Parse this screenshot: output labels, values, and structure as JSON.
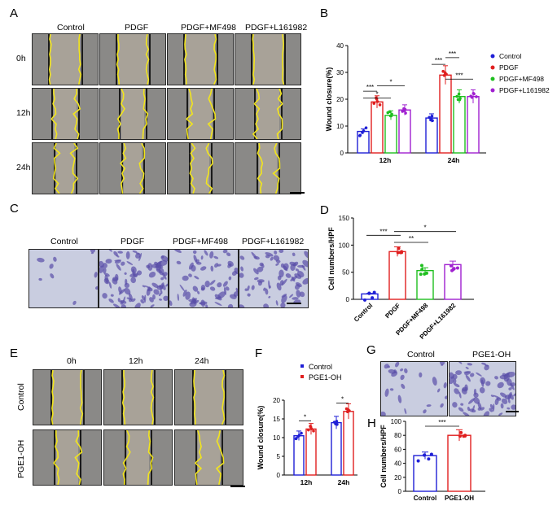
{
  "panels": {
    "A": {
      "label": "A",
      "columns": [
        "Control",
        "PDGF",
        "PDGF+MF498",
        "PDGF+L161982"
      ],
      "rows": [
        "0h",
        "12h",
        "24h"
      ]
    },
    "B": {
      "label": "B",
      "chart_data": {
        "type": "bar",
        "ylabel": "Wound closure(%)",
        "categories": [
          "12h",
          "24h"
        ],
        "ylim": [
          0,
          40
        ],
        "yticks": [
          "0",
          "10",
          "20",
          "30",
          "40"
        ],
        "series": [
          {
            "name": "Control",
            "color": "#1f1fd6",
            "values": [
              8,
              13
            ]
          },
          {
            "name": "PDGF",
            "color": "#e01f1f",
            "values": [
              19,
              29
            ]
          },
          {
            "name": "PDGF+MF498",
            "color": "#1fbf1f",
            "values": [
              14,
              21
            ]
          },
          {
            "name": "PDGF+L161982",
            "color": "#a020d0",
            "values": [
              16,
              21
            ]
          }
        ],
        "significance": [
          "***",
          "*",
          "*",
          "***",
          "***",
          "***"
        ]
      }
    },
    "C": {
      "label": "C",
      "columns": [
        "Control",
        "PDGF",
        "PDGF+MF498",
        "PDGF+L161982"
      ]
    },
    "D": {
      "label": "D",
      "chart_data": {
        "type": "bar",
        "ylabel": "Cell numbers/HPF",
        "categories": [
          "Control",
          "PDGF",
          "PDGF+MF498",
          "PDGF+L161982"
        ],
        "values": [
          10,
          88,
          53,
          64
        ],
        "colors": [
          "#1f1fd6",
          "#e01f1f",
          "#1fbf1f",
          "#a020d0"
        ],
        "ylim": [
          0,
          150
        ],
        "yticks": [
          "0",
          "50",
          "100",
          "150"
        ],
        "significance": [
          "***",
          "**",
          "*"
        ]
      }
    },
    "E": {
      "label": "E",
      "columns": [
        "0h",
        "12h",
        "24h"
      ],
      "rows": [
        "Control",
        "PGE1-OH"
      ]
    },
    "F": {
      "label": "F",
      "chart_data": {
        "type": "bar",
        "ylabel": "Wound closure(%)",
        "categories": [
          "12h",
          "24h"
        ],
        "ylim": [
          0,
          20
        ],
        "yticks": [
          "0",
          "5",
          "10",
          "15",
          "20"
        ],
        "series": [
          {
            "name": "Control",
            "color": "#1f1fd6",
            "values": [
              10.5,
              14
            ]
          },
          {
            "name": "PGE1-OH",
            "color": "#e01f1f",
            "values": [
              12.3,
              17
            ]
          }
        ],
        "significance": [
          "*",
          "*"
        ]
      }
    },
    "G": {
      "label": "G",
      "columns": [
        "Control",
        "PGE1-OH"
      ]
    },
    "H": {
      "label": "H",
      "chart_data": {
        "type": "bar",
        "ylabel": "Cell numbers/HPF",
        "categories": [
          "Control",
          "PGE1-OH"
        ],
        "values": [
          51,
          80
        ],
        "colors": [
          "#1f1fd6",
          "#e01f1f"
        ],
        "ylim": [
          0,
          100
        ],
        "yticks": [
          "0",
          "20",
          "40",
          "60",
          "80",
          "100"
        ],
        "significance": [
          "***"
        ]
      }
    }
  }
}
